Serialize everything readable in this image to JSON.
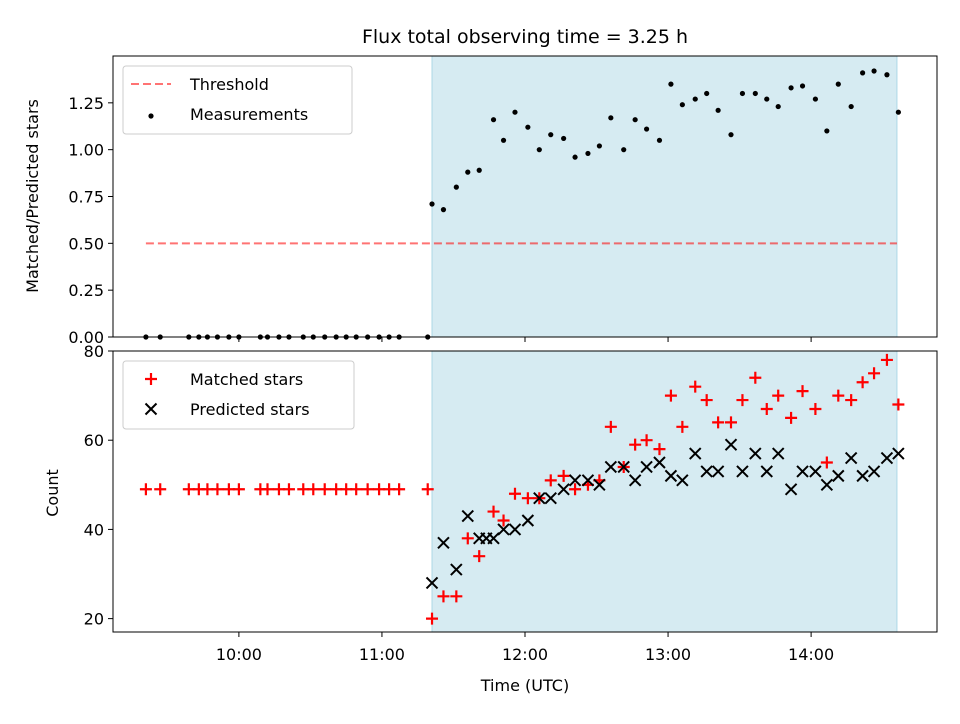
{
  "chart_data": [
    {
      "type": "scatter",
      "panel": "top",
      "title": "Flux total observing time = 3.25 h",
      "xlabel": "",
      "ylabel": "Matched/Predicted stars",
      "xlim": [
        9.12,
        14.88
      ],
      "ylim": [
        0.0,
        1.5
      ],
      "yticks": [
        0.0,
        0.25,
        0.5,
        0.75,
        1.0,
        1.25
      ],
      "ytick_labels": [
        "0.00",
        "0.25",
        "0.50",
        "0.75",
        "1.00",
        "1.25"
      ],
      "legend_position": "top-left",
      "shaded_span": {
        "start": 11.35,
        "end": 14.6,
        "color": "#add8e6"
      },
      "threshold": {
        "name": "Threshold",
        "value": 0.5,
        "x_start": 9.35,
        "x_end": 14.6,
        "color": "#ff0000"
      },
      "series": [
        {
          "name": "Measurements",
          "marker": "dot",
          "color": "#000000",
          "x": [
            9.35,
            9.45,
            9.65,
            9.72,
            9.78,
            9.85,
            9.93,
            10.0,
            10.15,
            10.2,
            10.28,
            10.35,
            10.45,
            10.52,
            10.6,
            10.68,
            10.75,
            10.82,
            10.9,
            10.98,
            11.05,
            11.12,
            11.32,
            11.35,
            11.43,
            11.52,
            11.6,
            11.68,
            11.78,
            11.85,
            11.93,
            12.02,
            12.1,
            12.18,
            12.27,
            12.35,
            12.44,
            12.52,
            12.6,
            12.69,
            12.77,
            12.85,
            12.94,
            13.02,
            13.1,
            13.19,
            13.27,
            13.35,
            13.44,
            13.52,
            13.61,
            13.69,
            13.77,
            13.86,
            13.94,
            14.03,
            14.11,
            14.19,
            14.28,
            14.36,
            14.44,
            14.53,
            14.61
          ],
          "y": [
            0,
            0,
            0,
            0,
            0,
            0,
            0,
            0,
            0,
            0,
            0,
            0,
            0,
            0,
            0,
            0,
            0,
            0,
            0,
            0,
            0,
            0,
            0,
            0.71,
            0.68,
            0.8,
            0.88,
            0.89,
            1.16,
            1.05,
            1.2,
            1.12,
            1.0,
            1.08,
            1.06,
            0.96,
            0.98,
            1.02,
            1.17,
            1.0,
            1.16,
            1.11,
            1.05,
            1.35,
            1.24,
            1.27,
            1.3,
            1.21,
            1.08,
            1.3,
            1.3,
            1.27,
            1.23,
            1.33,
            1.34,
            1.27,
            1.1,
            1.35,
            1.23,
            1.41,
            1.42,
            1.4,
            1.2
          ]
        }
      ]
    },
    {
      "type": "scatter",
      "panel": "bottom",
      "title": "",
      "xlabel": "Time (UTC)",
      "ylabel": "Count",
      "xlim": [
        9.12,
        14.88
      ],
      "ylim": [
        17,
        80
      ],
      "yticks": [
        20,
        40,
        60,
        80
      ],
      "ytick_labels": [
        "20",
        "40",
        "60",
        "80"
      ],
      "xticks": [
        10,
        11,
        12,
        13,
        14
      ],
      "xtick_labels": [
        "10:00",
        "11:00",
        "12:00",
        "13:00",
        "14:00"
      ],
      "legend_position": "top-left",
      "shaded_span": {
        "start": 11.35,
        "end": 14.6,
        "color": "#add8e6"
      },
      "series": [
        {
          "name": "Matched stars",
          "marker": "plus",
          "color": "#ff0000",
          "x": [
            9.35,
            9.45,
            9.65,
            9.72,
            9.78,
            9.85,
            9.93,
            10.0,
            10.15,
            10.2,
            10.28,
            10.35,
            10.45,
            10.52,
            10.6,
            10.68,
            10.75,
            10.82,
            10.9,
            10.98,
            11.05,
            11.12,
            11.32,
            11.35,
            11.43,
            11.52,
            11.6,
            11.68,
            11.78,
            11.85,
            11.93,
            12.02,
            12.1,
            12.18,
            12.27,
            12.35,
            12.44,
            12.52,
            12.6,
            12.69,
            12.77,
            12.85,
            12.94,
            13.02,
            13.1,
            13.19,
            13.27,
            13.35,
            13.44,
            13.52,
            13.61,
            13.69,
            13.77,
            13.86,
            13.94,
            14.03,
            14.11,
            14.19,
            14.28,
            14.36,
            14.44,
            14.53,
            14.61
          ],
          "y": [
            49,
            49,
            49,
            49,
            49,
            49,
            49,
            49,
            49,
            49,
            49,
            49,
            49,
            49,
            49,
            49,
            49,
            49,
            49,
            49,
            49,
            49,
            49,
            20,
            25,
            25,
            38,
            34,
            44,
            42,
            48,
            47,
            47,
            51,
            52,
            49,
            50,
            51,
            63,
            54,
            59,
            60,
            58,
            70,
            63,
            72,
            69,
            64,
            64,
            69,
            74,
            67,
            70,
            65,
            71,
            67,
            55,
            70,
            69,
            73,
            75,
            78,
            68
          ]
        },
        {
          "name": "Predicted stars",
          "marker": "x",
          "color": "#000000",
          "x": [
            11.35,
            11.43,
            11.52,
            11.6,
            11.68,
            11.73,
            11.78,
            11.85,
            11.93,
            12.02,
            12.1,
            12.18,
            12.27,
            12.35,
            12.44,
            12.52,
            12.6,
            12.69,
            12.77,
            12.85,
            12.94,
            13.02,
            13.1,
            13.19,
            13.27,
            13.35,
            13.44,
            13.52,
            13.61,
            13.69,
            13.77,
            13.86,
            13.94,
            14.03,
            14.11,
            14.19,
            14.28,
            14.36,
            14.44,
            14.53,
            14.61
          ],
          "y": [
            28,
            37,
            31,
            43,
            38,
            38,
            38,
            40,
            40,
            42,
            47,
            47,
            49,
            51,
            51,
            50,
            54,
            54,
            51,
            54,
            55,
            52,
            51,
            57,
            53,
            53,
            59,
            53,
            57,
            53,
            57,
            49,
            53,
            53,
            50,
            52,
            56,
            52,
            53,
            56,
            57
          ]
        }
      ]
    }
  ]
}
